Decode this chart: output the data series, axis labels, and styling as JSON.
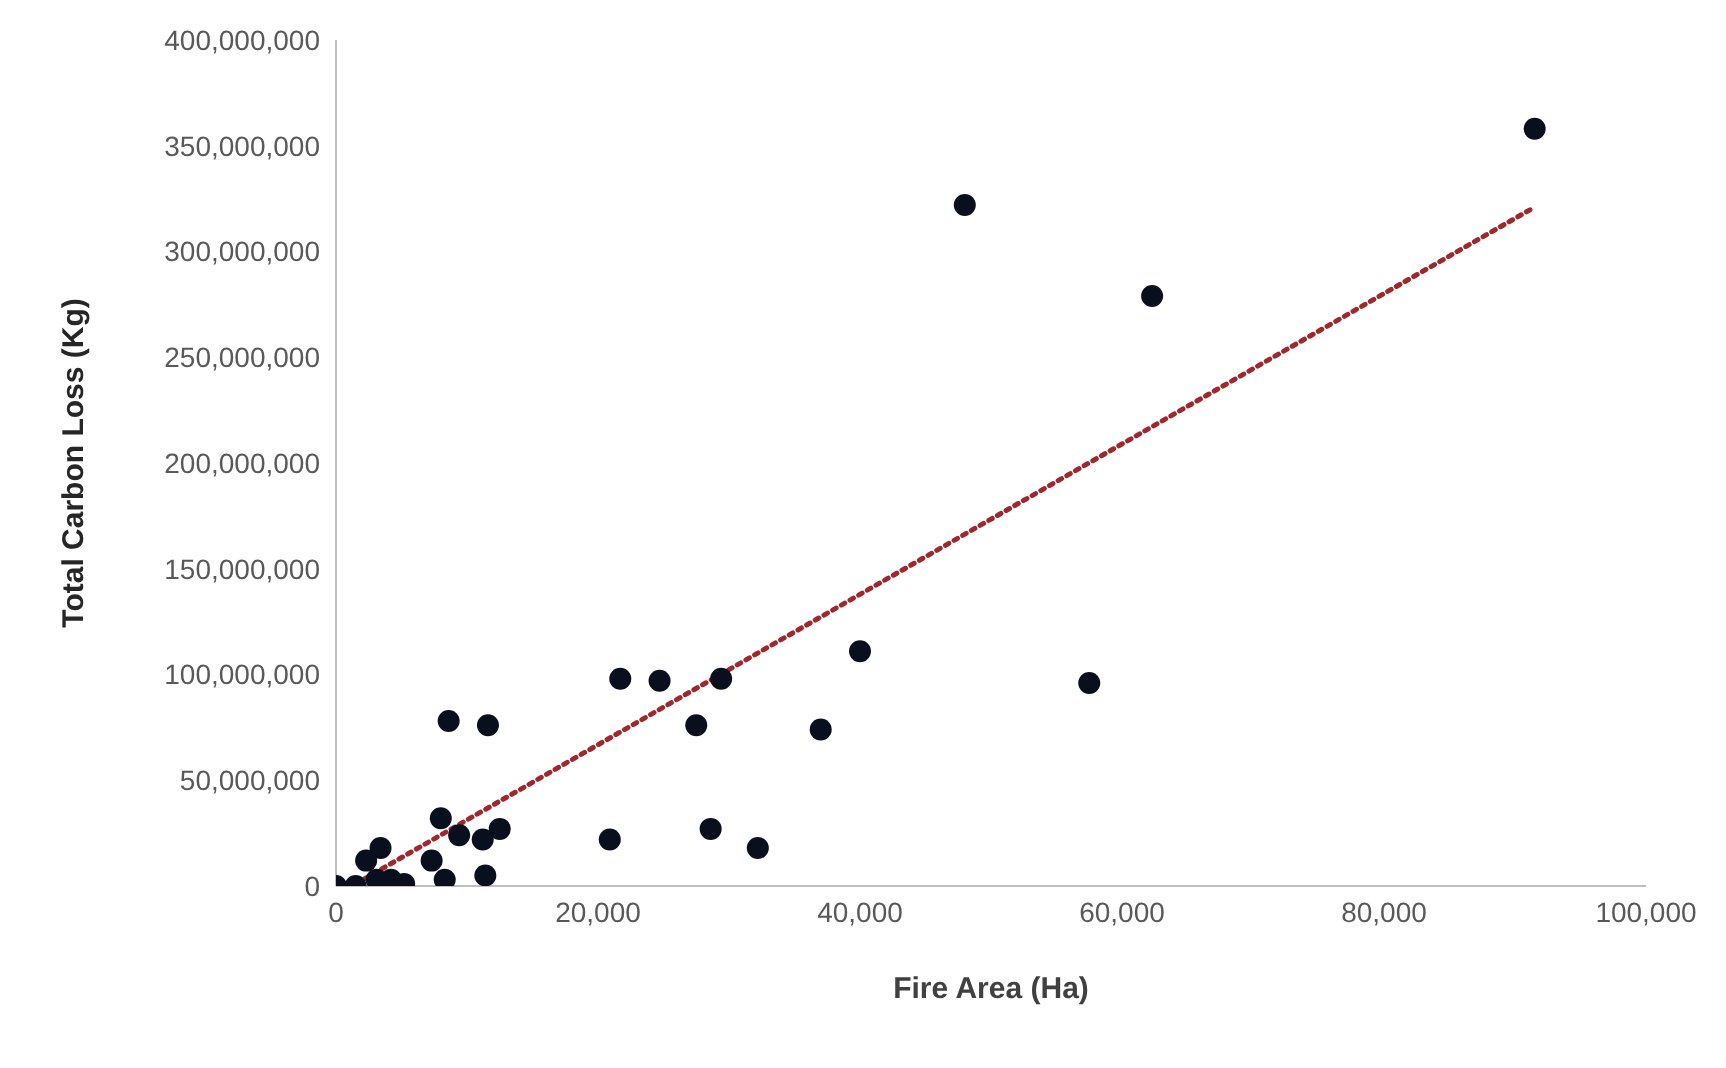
{
  "chart_data": {
    "type": "scatter",
    "xlabel": "Fire Area (Ha)",
    "ylabel": "Total Carbon Loss (Kg)",
    "xlim": [
      0,
      100000
    ],
    "xticks": [
      0,
      {
        "value": 20000,
        "label": "20,000"
      },
      {
        "value": 40000,
        "label": "40,000"
      },
      {
        "value": 60000,
        "label": "60,000"
      },
      {
        "value": 80000,
        "label": "80,000"
      },
      {
        "value": 100000,
        "label": "100,000"
      }
    ],
    "ylim": [
      0,
      400000000
    ],
    "yticks": [
      0,
      {
        "value": 50000000,
        "label": "50,000,000"
      },
      {
        "value": 100000000,
        "label": "100,000,000"
      },
      {
        "value": 150000000,
        "label": "150,000,000"
      },
      {
        "value": 200000000,
        "label": "200,000,000"
      },
      {
        "value": 250000000,
        "label": "250,000,000"
      },
      {
        "value": 300000000,
        "label": "300,000,000"
      },
      {
        "value": 350000000,
        "label": "350,000,000"
      },
      {
        "value": 400000000,
        "label": "400,000,000"
      }
    ],
    "marker": "circle",
    "series": [
      {
        "color": "#0a0f1e",
        "x": [
          0,
          1500,
          2300,
          3400,
          3100,
          5200,
          4200,
          7300,
          8000,
          8300,
          9400,
          11200,
          12500,
          11400,
          8600,
          11600,
          20900,
          21700,
          24700,
          29400,
          27500,
          28600,
          32200,
          37000,
          40000,
          57500,
          48000,
          62300,
          91500
        ],
        "values": [
          0,
          0,
          12000000,
          18000000,
          3000000,
          1000000,
          3000000,
          12000000,
          32000000,
          3000000,
          24000000,
          22000000,
          27000000,
          5000000,
          78000000,
          76000000,
          22000000,
          98000000,
          97000000,
          98000000,
          76000000,
          27000000,
          18000000,
          74000000,
          111000000,
          96000000,
          322000000,
          279000000,
          358000000
        ]
      },
      {
        "type": "line",
        "color": "#a0282d",
        "line_style": "dotted",
        "marker": "none",
        "x": [
          1500,
          91500
        ],
        "values": [
          1000000,
          321000000
        ]
      }
    ]
  }
}
